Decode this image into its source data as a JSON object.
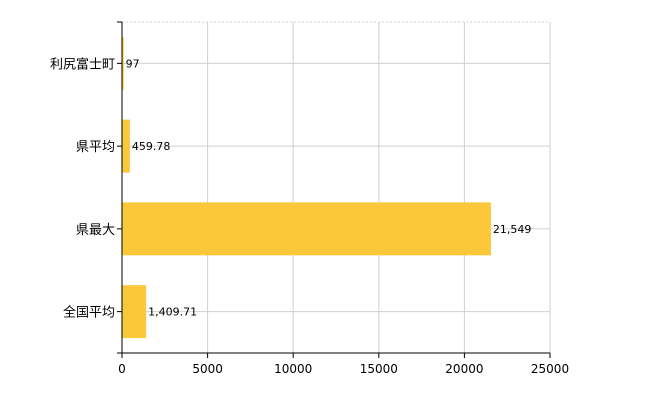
{
  "chart_data": {
    "type": "bar",
    "orientation": "horizontal",
    "categories": [
      "利尻富士町",
      "県平均",
      "県最大",
      "全国平均"
    ],
    "values": [
      97,
      459.78,
      21549,
      1409.71
    ],
    "value_labels": [
      "97",
      "459.78",
      "21,549",
      "1,409.71"
    ],
    "xlim": [
      0,
      25000
    ],
    "x_ticks": [
      0,
      5000,
      10000,
      15000,
      20000,
      25000
    ],
    "x_tick_labels": [
      "0",
      "5000",
      "10000",
      "15000",
      "20000",
      "25000"
    ],
    "bar_color": "#fbc83a",
    "grid": true
  }
}
